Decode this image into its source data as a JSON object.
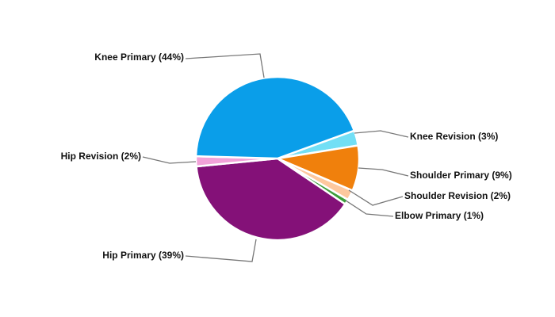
{
  "chart_data": {
    "type": "pie",
    "categories": [
      "Knee Revision (3%)",
      "Shoulder Primary (9%)",
      "Shoulder Revision (2%)",
      "Elbow Primary (1%)",
      "Hip Primary (39%)",
      "Hip Revision (2%)",
      "Knee Primary (44%)"
    ],
    "values": [
      3,
      9,
      2,
      1,
      39,
      2,
      44
    ],
    "colors": [
      "#72dff5",
      "#f0800c",
      "#fdc89e",
      "#3c9e3a",
      "#841178",
      "#f2a2d9",
      "#0a9ee9"
    ]
  }
}
